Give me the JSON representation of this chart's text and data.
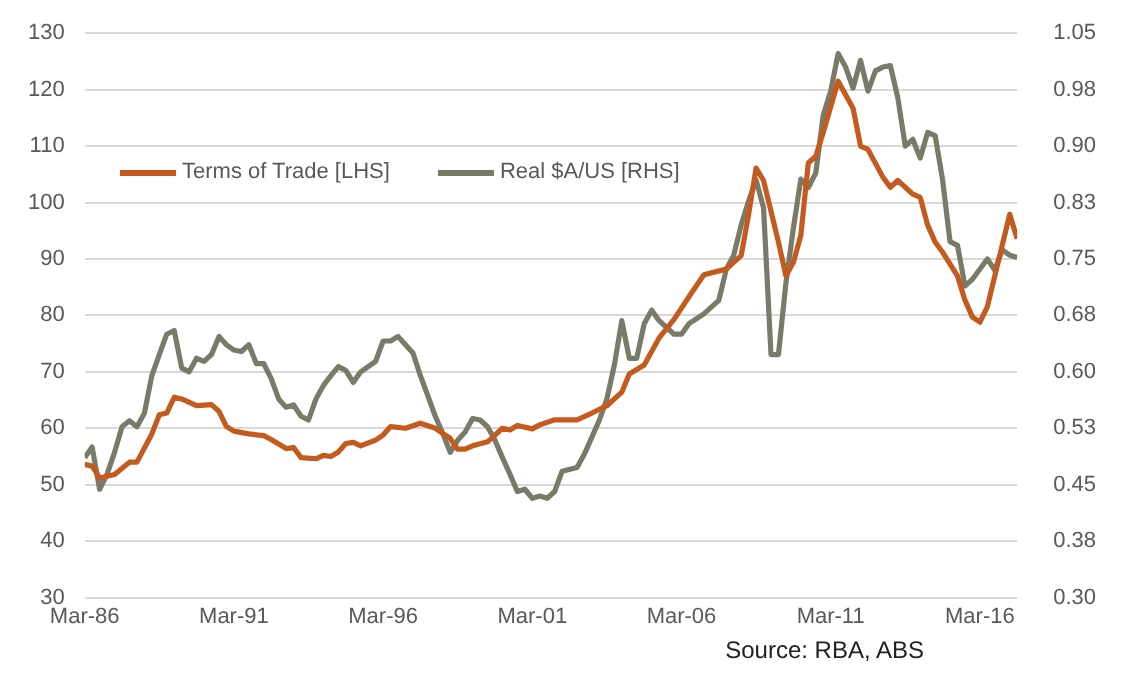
{
  "chart_data": {
    "type": "line",
    "xlim": [
      "1986-03",
      "2017-06"
    ],
    "xticks": [
      {
        "value": "1986-03",
        "label": "Mar-86"
      },
      {
        "value": "1991-03",
        "label": "Mar-91"
      },
      {
        "value": "1996-03",
        "label": "Mar-96"
      },
      {
        "value": "2001-03",
        "label": "Mar-01"
      },
      {
        "value": "2006-03",
        "label": "Mar-06"
      },
      {
        "value": "2011-03",
        "label": "Mar-11"
      },
      {
        "value": "2016-03",
        "label": "Mar-16"
      }
    ],
    "ylim": [
      30,
      130
    ],
    "yticks": [
      30,
      40,
      50,
      60,
      70,
      80,
      90,
      100,
      110,
      120,
      130
    ],
    "y2lim": [
      0.3,
      1.05
    ],
    "y2ticks": [
      {
        "value": 0.3,
        "label": "0.30"
      },
      {
        "value": 0.375,
        "label": "0.38"
      },
      {
        "value": 0.45,
        "label": "0.45"
      },
      {
        "value": 0.525,
        "label": "0.53"
      },
      {
        "value": 0.6,
        "label": "0.60"
      },
      {
        "value": 0.675,
        "label": "0.68"
      },
      {
        "value": 0.75,
        "label": "0.75"
      },
      {
        "value": 0.825,
        "label": "0.83"
      },
      {
        "value": 0.9,
        "label": "0.90"
      },
      {
        "value": 0.975,
        "label": "0.98"
      },
      {
        "value": 1.05,
        "label": "1.05"
      }
    ],
    "grid": "y",
    "legend": "top left",
    "marker": "none",
    "line_style": "solid",
    "annotations": [
      "Source: RBA, ABS"
    ],
    "series": [
      {
        "name": "Terms of Trade [LHS]",
        "color": "#c55a1e",
        "x": [
          "1986-03",
          "1986-06",
          "1986-09",
          "1987-03",
          "1987-09",
          "1987-12",
          "1988-06",
          "1988-09",
          "1988-12",
          "1989-03",
          "1989-06",
          "1989-12",
          "1990-06",
          "1990-09",
          "1990-12",
          "1991-03",
          "1991-09",
          "1992-03",
          "1992-06",
          "1992-12",
          "1993-03",
          "1993-06",
          "1993-12",
          "1994-03",
          "1994-06",
          "1994-09",
          "1994-12",
          "1995-03",
          "1995-06",
          "1995-12",
          "1996-03",
          "1996-06",
          "1996-12",
          "1997-06",
          "1997-12",
          "1998-06",
          "1998-09",
          "1998-12",
          "1999-03",
          "1999-09",
          "2000-03",
          "2000-06",
          "2000-09",
          "2001-03",
          "2001-06",
          "2001-12",
          "2002-09",
          "2003-03",
          "2003-09",
          "2004-03",
          "2004-06",
          "2004-12",
          "2005-06",
          "2005-12",
          "2006-06",
          "2006-12",
          "2007-09",
          "2008-03",
          "2008-06",
          "2008-09",
          "2008-12",
          "2009-06",
          "2009-09",
          "2009-12",
          "2010-03",
          "2010-06",
          "2010-09",
          "2010-12",
          "2011-06",
          "2011-12",
          "2012-03",
          "2012-06",
          "2012-12",
          "2013-03",
          "2013-06",
          "2013-12",
          "2014-03",
          "2014-06",
          "2014-09",
          "2014-12",
          "2015-06",
          "2015-09",
          "2015-12",
          "2016-03",
          "2016-06",
          "2016-09",
          "2017-03",
          "2017-06"
        ],
        "values": [
          53.6,
          53.3,
          51.2,
          51.8,
          54,
          54,
          59,
          62.4,
          62.7,
          65.5,
          65.2,
          64,
          64.2,
          63,
          60.3,
          59.5,
          59,
          58.7,
          58,
          56.4,
          56.6,
          54.8,
          54.6,
          55.2,
          55,
          55.8,
          57.3,
          57.5,
          56.9,
          57.9,
          58.8,
          60.3,
          60,
          60.9,
          60,
          58.2,
          56.3,
          56.3,
          56.9,
          57.6,
          60,
          59.7,
          60.5,
          59.9,
          60.6,
          61.5,
          61.5,
          62.7,
          64,
          66.4,
          69.6,
          71.2,
          76,
          79.3,
          83.3,
          87.2,
          88.2,
          90.6,
          97.9,
          106.1,
          103.9,
          93,
          87,
          89.4,
          94.2,
          107,
          108.2,
          112.4,
          121.5,
          116.7,
          110,
          109.4,
          104.5,
          102.7,
          103.9,
          101.5,
          100.9,
          96,
          93,
          91.2,
          87,
          82.7,
          79.7,
          78.8,
          81.5,
          87,
          97.9,
          93.6
        ]
      },
      {
        "name": "Real $A/US [RHS]",
        "color": "#7a7a68",
        "axis": "y2",
        "x": [
          "1986-03",
          "1986-06",
          "1986-09",
          "1986-12",
          "1987-03",
          "1987-06",
          "1987-09",
          "1987-12",
          "1988-03",
          "1988-06",
          "1988-09",
          "1988-12",
          "1989-03",
          "1989-06",
          "1989-09",
          "1989-12",
          "1990-03",
          "1990-06",
          "1990-09",
          "1990-12",
          "1991-03",
          "1991-06",
          "1991-09",
          "1991-12",
          "1992-03",
          "1992-06",
          "1992-09",
          "1992-12",
          "1993-03",
          "1993-06",
          "1993-09",
          "1993-12",
          "1994-03",
          "1994-06",
          "1994-09",
          "1994-12",
          "1995-03",
          "1995-06",
          "1995-09",
          "1995-12",
          "1996-03",
          "1996-06",
          "1996-09",
          "1996-12",
          "1997-03",
          "1997-06",
          "1997-09",
          "1997-12",
          "1998-03",
          "1998-06",
          "1998-09",
          "1998-12",
          "1999-03",
          "1999-06",
          "1999-09",
          "1999-12",
          "2000-03",
          "2000-06",
          "2000-09",
          "2000-12",
          "2001-03",
          "2001-06",
          "2001-09",
          "2001-12",
          "2002-03",
          "2002-09",
          "2002-12",
          "2003-06",
          "2003-09",
          "2003-12",
          "2004-03",
          "2004-06",
          "2004-09",
          "2004-12",
          "2005-03",
          "2005-06",
          "2005-12",
          "2006-03",
          "2006-06",
          "2006-12",
          "2007-06",
          "2007-09",
          "2007-12",
          "2008-03",
          "2008-06",
          "2008-09",
          "2008-12",
          "2009-03",
          "2009-06",
          "2009-09",
          "2009-12",
          "2010-03",
          "2010-06",
          "2010-09",
          "2010-12",
          "2011-03",
          "2011-06",
          "2011-09",
          "2011-12",
          "2012-03",
          "2012-06",
          "2012-09",
          "2012-12",
          "2013-03",
          "2013-06",
          "2013-09",
          "2013-12",
          "2014-03",
          "2014-06",
          "2014-09",
          "2014-12",
          "2015-03",
          "2015-06",
          "2015-09",
          "2015-12",
          "2016-06",
          "2016-09",
          "2016-12",
          "2017-03",
          "2017-06"
        ],
        "values": [
          0.486,
          0.5,
          0.444,
          0.464,
          0.493,
          0.527,
          0.535,
          0.527,
          0.545,
          0.595,
          0.623,
          0.65,
          0.655,
          0.605,
          0.6,
          0.618,
          0.614,
          0.623,
          0.647,
          0.636,
          0.629,
          0.627,
          0.636,
          0.611,
          0.611,
          0.591,
          0.564,
          0.553,
          0.556,
          0.541,
          0.536,
          0.564,
          0.582,
          0.595,
          0.607,
          0.602,
          0.586,
          0.6,
          0.607,
          0.614,
          0.641,
          0.641,
          0.647,
          0.636,
          0.625,
          0.595,
          0.568,
          0.541,
          0.518,
          0.493,
          0.509,
          0.52,
          0.538,
          0.536,
          0.527,
          0.509,
          0.486,
          0.464,
          0.441,
          0.444,
          0.432,
          0.435,
          0.432,
          0.441,
          0.468,
          0.473,
          0.491,
          0.536,
          0.564,
          0.609,
          0.668,
          0.618,
          0.618,
          0.664,
          0.682,
          0.668,
          0.65,
          0.65,
          0.664,
          0.677,
          0.695,
          0.736,
          0.755,
          0.795,
          0.827,
          0.855,
          0.818,
          0.623,
          0.623,
          0.718,
          0.791,
          0.856,
          0.845,
          0.864,
          0.941,
          0.973,
          1.023,
          1.005,
          0.977,
          1.014,
          0.973,
          1.0,
          1.005,
          1.007,
          0.964,
          0.9,
          0.909,
          0.884,
          0.918,
          0.914,
          0.855,
          0.773,
          0.768,
          0.714,
          0.723,
          0.75,
          0.735,
          0.762,
          0.755,
          0.752
        ]
      }
    ]
  }
}
